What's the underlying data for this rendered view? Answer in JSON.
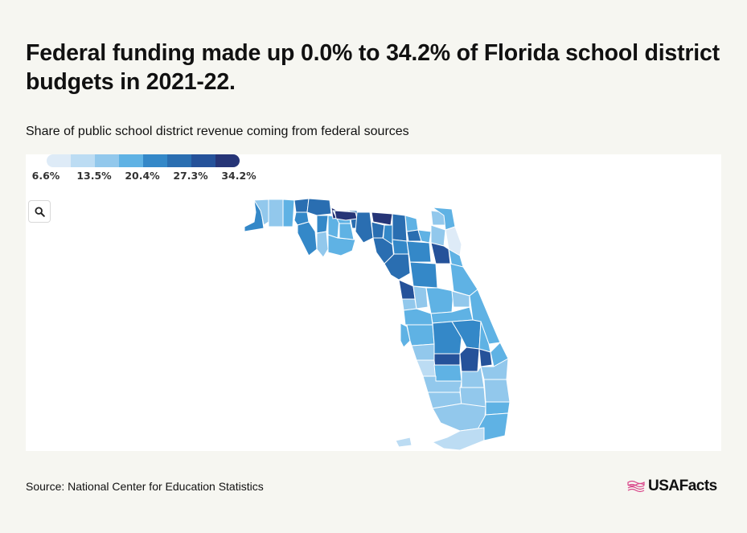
{
  "title": "Federal funding made up 0.0% to 34.2% of Florida school district budgets in 2021-22.",
  "subtitle": "Share of public school district revenue coming from federal sources",
  "source": "Source: National Center for Education Statistics",
  "logo": {
    "text": "USAFacts",
    "icon": "us-flag-icon"
  },
  "zoom_button": {
    "icon": "search-icon"
  },
  "legend": {
    "colors": [
      "#deebf7",
      "#bcdcf3",
      "#92c8ec",
      "#5fb2e4",
      "#3488c8",
      "#2a6eb1",
      "#25529a",
      "#263577"
    ],
    "labels": [
      "6.6%",
      "13.5%",
      "20.4%",
      "27.3%",
      "34.2%"
    ]
  },
  "map_data": {
    "state": "Florida",
    "measure": "Share of public school district revenue from federal sources",
    "range_pct": [
      0.0,
      34.2
    ],
    "districts": [
      {
        "id": "escambia",
        "bin": 4
      },
      {
        "id": "santa-rosa",
        "bin": 2
      },
      {
        "id": "okaloosa",
        "bin": 2
      },
      {
        "id": "walton",
        "bin": 3
      },
      {
        "id": "holmes",
        "bin": 5
      },
      {
        "id": "washington",
        "bin": 4
      },
      {
        "id": "bay",
        "bin": 4
      },
      {
        "id": "jackson",
        "bin": 5
      },
      {
        "id": "calhoun",
        "bin": 4
      },
      {
        "id": "gulf",
        "bin": 2
      },
      {
        "id": "liberty",
        "bin": 3
      },
      {
        "id": "franklin",
        "bin": 3
      },
      {
        "id": "gadsden",
        "bin": 7
      },
      {
        "id": "leon",
        "bin": 3
      },
      {
        "id": "wakulla",
        "bin": 3
      },
      {
        "id": "jefferson",
        "bin": 5
      },
      {
        "id": "madison",
        "bin": 7
      },
      {
        "id": "taylor",
        "bin": 5
      },
      {
        "id": "hamilton",
        "bin": 7
      },
      {
        "id": "suwannee",
        "bin": 5
      },
      {
        "id": "lafayette",
        "bin": 4
      },
      {
        "id": "dixie",
        "bin": 5
      },
      {
        "id": "columbia",
        "bin": 5
      },
      {
        "id": "baker",
        "bin": 3
      },
      {
        "id": "union",
        "bin": 5
      },
      {
        "id": "bradford",
        "bin": 3
      },
      {
        "id": "gilchrist",
        "bin": 4
      },
      {
        "id": "levy",
        "bin": 5
      },
      {
        "id": "alachua",
        "bin": 4
      },
      {
        "id": "nassau",
        "bin": 2
      },
      {
        "id": "duval",
        "bin": 3
      },
      {
        "id": "clay",
        "bin": 2
      },
      {
        "id": "st-johns",
        "bin": 0
      },
      {
        "id": "putnam",
        "bin": 6
      },
      {
        "id": "flagler",
        "bin": 3
      },
      {
        "id": "marion",
        "bin": 4
      },
      {
        "id": "volusia",
        "bin": 3
      },
      {
        "id": "citrus",
        "bin": 6
      },
      {
        "id": "hernando",
        "bin": 2
      },
      {
        "id": "sumter",
        "bin": 2
      },
      {
        "id": "lake",
        "bin": 3
      },
      {
        "id": "seminole",
        "bin": 2
      },
      {
        "id": "orange",
        "bin": 3
      },
      {
        "id": "brevard",
        "bin": 3
      },
      {
        "id": "pasco",
        "bin": 3
      },
      {
        "id": "pinellas",
        "bin": 3
      },
      {
        "id": "hillsborough",
        "bin": 3
      },
      {
        "id": "polk",
        "bin": 4
      },
      {
        "id": "osceola",
        "bin": 4
      },
      {
        "id": "indian-river",
        "bin": 3
      },
      {
        "id": "manatee",
        "bin": 2
      },
      {
        "id": "hardee",
        "bin": 6
      },
      {
        "id": "highlands",
        "bin": 6
      },
      {
        "id": "okeechobee",
        "bin": 6
      },
      {
        "id": "st-lucie",
        "bin": 3
      },
      {
        "id": "sarasota",
        "bin": 1
      },
      {
        "id": "desoto",
        "bin": 3
      },
      {
        "id": "charlotte",
        "bin": 2
      },
      {
        "id": "glades",
        "bin": 2
      },
      {
        "id": "martin",
        "bin": 2
      },
      {
        "id": "lee",
        "bin": 2
      },
      {
        "id": "hendry",
        "bin": 2
      },
      {
        "id": "palm-beach",
        "bin": 2
      },
      {
        "id": "collier",
        "bin": 2
      },
      {
        "id": "broward",
        "bin": 3
      },
      {
        "id": "miami-dade",
        "bin": 3
      },
      {
        "id": "monroe",
        "bin": 1
      }
    ]
  }
}
